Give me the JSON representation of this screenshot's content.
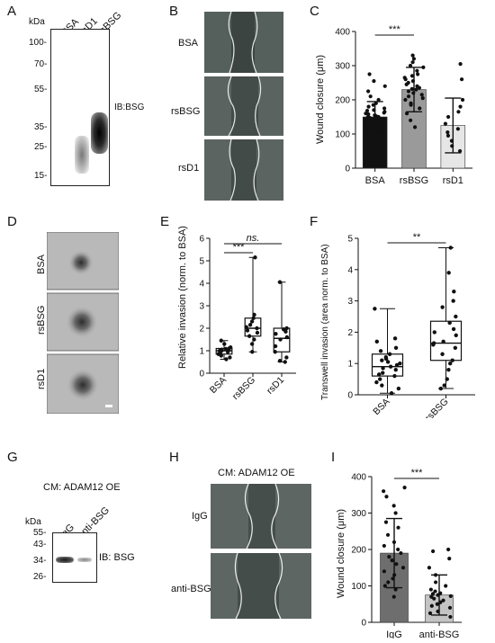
{
  "panels": {
    "A": {
      "letter": "A",
      "unit": "kDa",
      "lanes": [
        "BSA",
        "rsD1",
        "rsBSG"
      ],
      "markers": [
        "100-",
        "70-",
        "55-",
        "35-",
        "25-",
        "15-"
      ],
      "ib": "IB:BSG"
    },
    "B": {
      "letter": "B",
      "rows": [
        "BSA",
        "rsBSG",
        "rsD1"
      ]
    },
    "C": {
      "letter": "C",
      "ylabel": "Wound closure (μm)",
      "sig": "***"
    },
    "D": {
      "letter": "D",
      "rows": [
        "BSA",
        "rsBSG",
        "rsD1"
      ]
    },
    "E": {
      "letter": "E",
      "ylabel": "Relative invasion (norm. to BSA)",
      "sig1": "***",
      "sig2": "ns."
    },
    "F": {
      "letter": "F",
      "ylabel": "Transwell invasion (area norm. to BSA)",
      "sig": "**"
    },
    "G": {
      "letter": "G",
      "cm": "CM: ADAM12 OE",
      "unit": "kDa",
      "lanes": [
        "IgG",
        "anti-BSG"
      ],
      "markers": [
        "55-",
        "43-",
        "34-",
        "26-"
      ],
      "ib": "IB: BSG"
    },
    "H": {
      "letter": "H",
      "cm": "CM: ADAM12 OE",
      "rows": [
        "IgG",
        "anti-BSG"
      ]
    },
    "I": {
      "letter": "I",
      "ylabel": "Wound closure (μm)",
      "sig": "***"
    }
  },
  "chart_data": [
    {
      "panel": "C",
      "type": "bar",
      "categories": [
        "BSA",
        "rsBSG",
        "rsD1"
      ],
      "values": [
        150,
        230,
        125
      ],
      "errors": [
        45,
        65,
        80
      ],
      "ylim": [
        0,
        400
      ],
      "yticks": [
        0,
        100,
        200,
        300,
        400
      ],
      "colors": [
        "#111111",
        "#9a9a9a",
        "#e6e6e6"
      ],
      "points": [
        [
          95,
          100,
          105,
          110,
          115,
          120,
          125,
          128,
          130,
          132,
          135,
          138,
          140,
          142,
          145,
          148,
          150,
          150,
          152,
          155,
          158,
          160,
          162,
          165,
          168,
          170,
          175,
          180,
          185,
          190,
          200,
          210,
          225,
          240,
          255,
          275
        ],
        [
          120,
          140,
          160,
          175,
          185,
          190,
          200,
          205,
          210,
          215,
          220,
          225,
          230,
          232,
          235,
          240,
          245,
          250,
          255,
          260,
          265,
          270,
          275,
          285,
          295,
          300,
          310,
          320,
          330
        ],
        [
          50,
          65,
          80,
          95,
          105,
          115,
          130,
          150,
          165,
          180,
          200,
          260,
          305
        ]
      ]
    },
    {
      "panel": "E",
      "type": "box",
      "categories": [
        "BSA",
        "rsBSG",
        "rsD1"
      ],
      "ylim": [
        0,
        6
      ],
      "yticks": [
        0,
        1,
        2,
        3,
        4,
        5,
        6
      ],
      "boxes": [
        {
          "min": 0.62,
          "q1": 0.85,
          "median": 1.0,
          "q3": 1.1,
          "max": 1.45
        },
        {
          "min": 0.95,
          "q1": 1.65,
          "median": 2.0,
          "q3": 2.45,
          "max": 5.15
        },
        {
          "min": 0.5,
          "q1": 0.95,
          "median": 1.55,
          "q3": 2.0,
          "max": 4.05
        }
      ],
      "points": [
        [
          0.62,
          0.7,
          0.78,
          0.85,
          0.9,
          0.95,
          1.0,
          1.0,
          1.02,
          1.05,
          1.08,
          1.1,
          1.15,
          1.3,
          1.45
        ],
        [
          0.95,
          1.3,
          1.5,
          1.65,
          1.8,
          1.9,
          2.0,
          2.05,
          2.15,
          2.3,
          2.45,
          2.6,
          5.15
        ],
        [
          0.5,
          0.55,
          0.7,
          0.95,
          1.2,
          1.5,
          1.6,
          1.75,
          1.85,
          1.95,
          2.0,
          4.05
        ]
      ]
    },
    {
      "panel": "F",
      "type": "box",
      "categories": [
        "BSA",
        "rsBSG"
      ],
      "ylim": [
        0,
        5
      ],
      "yticks": [
        0,
        1,
        2,
        3,
        4,
        5
      ],
      "boxes": [
        {
          "min": 0.05,
          "q1": 0.6,
          "median": 0.9,
          "q3": 1.3,
          "max": 2.75
        },
        {
          "min": 0.2,
          "q1": 1.1,
          "median": 1.65,
          "q3": 2.35,
          "max": 4.7
        }
      ],
      "points": [
        [
          0.05,
          0.2,
          0.3,
          0.4,
          0.5,
          0.6,
          0.65,
          0.7,
          0.8,
          0.85,
          0.9,
          0.95,
          1.0,
          1.05,
          1.1,
          1.15,
          1.2,
          1.3,
          1.4,
          1.5,
          1.7,
          1.8,
          2.75
        ],
        [
          0.2,
          0.3,
          0.5,
          0.8,
          1.0,
          1.1,
          1.3,
          1.5,
          1.6,
          1.65,
          1.7,
          1.9,
          2.0,
          2.1,
          2.3,
          2.5,
          2.8,
          3.0,
          3.3,
          3.9,
          4.7
        ]
      ]
    },
    {
      "panel": "I",
      "type": "bar",
      "categories": [
        "IgG",
        "anti-BSG"
      ],
      "values": [
        190,
        75
      ],
      "errors": [
        95,
        55
      ],
      "ylim": [
        0,
        400
      ],
      "yticks": [
        0,
        100,
        200,
        300,
        400
      ],
      "colors": [
        "#6e6e6e",
        "#c4c4c4"
      ],
      "points": [
        [
          70,
          90,
          100,
          110,
          120,
          130,
          140,
          150,
          160,
          170,
          180,
          190,
          200,
          210,
          220,
          240,
          260,
          275,
          300,
          320,
          345,
          360,
          370
        ],
        [
          15,
          25,
          30,
          40,
          45,
          50,
          55,
          60,
          65,
          70,
          72,
          75,
          78,
          80,
          85,
          90,
          100,
          110,
          130,
          150,
          175,
          195,
          200
        ]
      ]
    }
  ]
}
